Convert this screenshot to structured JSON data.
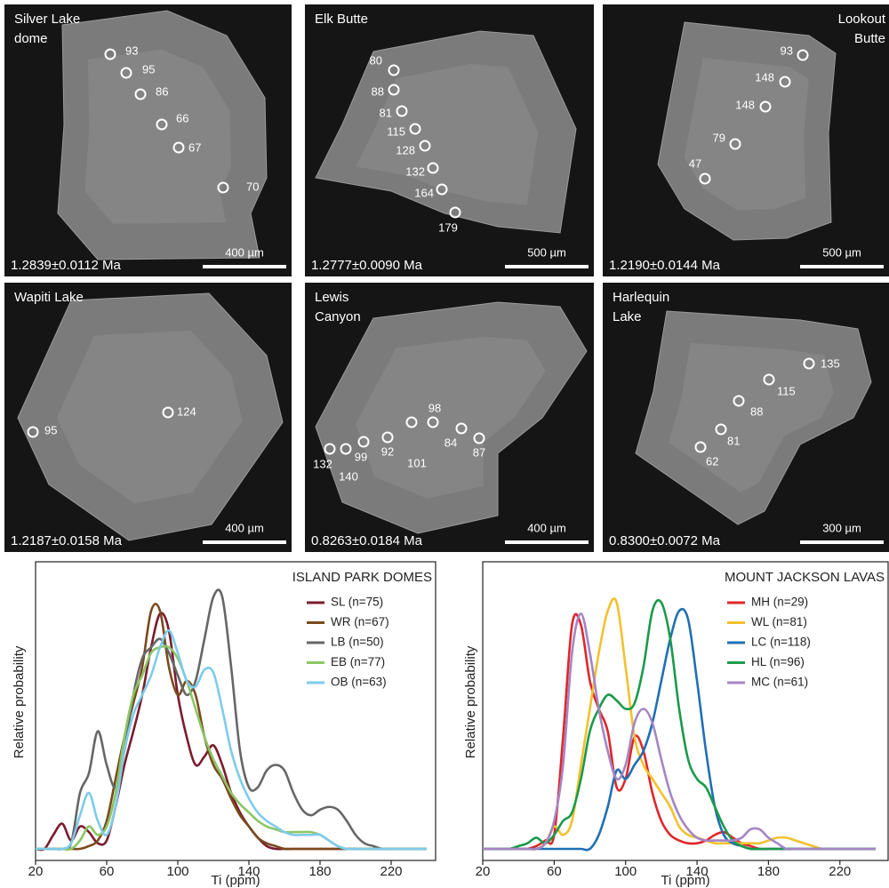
{
  "panels": [
    {
      "title": [
        "Silver Lake",
        "dome"
      ],
      "spots": [
        "93",
        "95",
        "86",
        "66",
        "67",
        "70"
      ],
      "age": "1.2839±0.0112 Ma",
      "scale": "400 µm"
    },
    {
      "title": [
        "Elk Butte"
      ],
      "spots": [
        "80",
        "88",
        "81",
        "115",
        "128",
        "132",
        "164",
        "179"
      ],
      "age": "1.2777±0.0090 Ma",
      "scale": "500 µm"
    },
    {
      "title": [
        "Lookout",
        "Butte"
      ],
      "spots": [
        "93",
        "148",
        "148",
        "79",
        "47"
      ],
      "age": "1.2190±0.0144 Ma",
      "scale": "500 µm"
    },
    {
      "title": [
        "Wapiti Lake"
      ],
      "spots": [
        "95",
        "124"
      ],
      "age": "1.2187±0.0158 Ma",
      "scale": "400 µm"
    },
    {
      "title": [
        "Lewis",
        "Canyon"
      ],
      "spots": [
        "132",
        "140",
        "99",
        "92",
        "101",
        "98",
        "84",
        "87"
      ],
      "age": "0.8263±0.0184 Ma",
      "scale": "400 µm"
    },
    {
      "title": [
        "Harlequin",
        "Lake"
      ],
      "spots": [
        "135",
        "115",
        "88",
        "81",
        "62"
      ],
      "age": "0.8300±0.0072 Ma",
      "scale": "300 µm"
    }
  ],
  "chart_data": [
    {
      "type": "line",
      "title": "ISLAND PARK DOMES",
      "x_label": "Ti (ppm)",
      "y_label": "Relative probability",
      "xlim": [
        20,
        245
      ],
      "ylim": [
        0,
        1
      ],
      "xticks": [
        20,
        60,
        100,
        140,
        180,
        220
      ],
      "x": [
        20,
        25,
        30,
        35,
        40,
        45,
        50,
        55,
        60,
        65,
        70,
        75,
        80,
        85,
        90,
        95,
        100,
        105,
        110,
        115,
        120,
        125,
        130,
        135,
        140,
        145,
        150,
        155,
        160,
        165,
        170,
        175,
        180,
        185,
        190,
        195,
        200,
        205,
        210,
        215,
        220,
        225,
        230,
        235,
        240
      ],
      "series": [
        {
          "name": "SL (n=75)",
          "color": "#7b1c2e",
          "values": [
            0,
            0,
            0.05,
            0.09,
            0.03,
            0.08,
            0.06,
            0.02,
            0.03,
            0.15,
            0.3,
            0.42,
            0.55,
            0.72,
            0.84,
            0.78,
            0.55,
            0.4,
            0.3,
            0.33,
            0.37,
            0.3,
            0.2,
            0.13,
            0.08,
            0.04,
            0.01,
            0,
            0,
            0,
            0,
            0,
            0,
            0,
            0,
            0,
            0,
            0,
            0,
            0,
            0,
            0,
            0,
            0,
            0
          ]
        },
        {
          "name": "WR (n=67)",
          "color": "#7a4a1e",
          "values": [
            0,
            0,
            0,
            0,
            0,
            0,
            0.01,
            0.03,
            0.1,
            0.25,
            0.4,
            0.52,
            0.65,
            0.85,
            0.85,
            0.65,
            0.55,
            0.6,
            0.55,
            0.4,
            0.3,
            0.25,
            0.18,
            0.12,
            0.08,
            0.04,
            0.02,
            0.01,
            0,
            0,
            0,
            0,
            0,
            0,
            0,
            0,
            0,
            0,
            0,
            0,
            0,
            0,
            0,
            0,
            0
          ]
        },
        {
          "name": "LB (n=50)",
          "color": "#666666",
          "values": [
            0,
            0,
            0,
            0,
            0.02,
            0.2,
            0.27,
            0.42,
            0.3,
            0.22,
            0.35,
            0.55,
            0.68,
            0.72,
            0.75,
            0.7,
            0.62,
            0.55,
            0.6,
            0.75,
            0.9,
            0.9,
            0.65,
            0.35,
            0.22,
            0.22,
            0.28,
            0.3,
            0.28,
            0.2,
            0.14,
            0.12,
            0.14,
            0.15,
            0.14,
            0.1,
            0.05,
            0.02,
            0.01,
            0,
            0,
            0,
            0,
            0,
            0
          ]
        },
        {
          "name": "EB (n=77)",
          "color": "#8cc665",
          "values": [
            0,
            0,
            0,
            0,
            0,
            0.03,
            0.08,
            0.05,
            0.08,
            0.2,
            0.4,
            0.55,
            0.62,
            0.7,
            0.72,
            0.72,
            0.68,
            0.6,
            0.5,
            0.4,
            0.32,
            0.26,
            0.2,
            0.16,
            0.13,
            0.1,
            0.08,
            0.07,
            0.06,
            0.06,
            0.06,
            0.06,
            0.05,
            0.03,
            0.01,
            0,
            0,
            0,
            0,
            0,
            0,
            0,
            0,
            0,
            0
          ]
        },
        {
          "name": "OB (n=63)",
          "color": "#7dcbeb",
          "values": [
            0,
            0,
            0,
            0,
            0.02,
            0.12,
            0.2,
            0.1,
            0.05,
            0.15,
            0.35,
            0.48,
            0.55,
            0.62,
            0.72,
            0.78,
            0.7,
            0.6,
            0.58,
            0.64,
            0.63,
            0.5,
            0.35,
            0.25,
            0.18,
            0.13,
            0.1,
            0.08,
            0.06,
            0.05,
            0.05,
            0.05,
            0.05,
            0.03,
            0.01,
            0,
            0,
            0,
            0,
            0,
            0,
            0,
            0,
            0,
            0
          ]
        }
      ]
    },
    {
      "type": "line",
      "title": "MOUNT JACKSON LAVAS",
      "x_label": "Ti (ppm)",
      "y_label": "Relative probability",
      "xlim": [
        20,
        247
      ],
      "ylim": [
        0,
        1
      ],
      "xticks": [
        20,
        60,
        100,
        140,
        180,
        220
      ],
      "x": [
        20,
        25,
        30,
        35,
        40,
        45,
        50,
        55,
        60,
        65,
        70,
        75,
        80,
        85,
        90,
        95,
        100,
        105,
        110,
        115,
        120,
        125,
        130,
        135,
        140,
        145,
        150,
        155,
        160,
        165,
        170,
        175,
        180,
        185,
        190,
        195,
        200,
        205,
        210,
        215,
        220,
        225,
        230,
        235,
        240
      ],
      "series": [
        {
          "name": "MH (n=29)",
          "color": "#e0262a",
          "values": [
            0,
            0,
            0,
            0,
            0,
            0,
            0.01,
            0.03,
            0.05,
            0.4,
            0.8,
            0.8,
            0.6,
            0.5,
            0.42,
            0.22,
            0.25,
            0.4,
            0.35,
            0.2,
            0.1,
            0.05,
            0.03,
            0.02,
            0.02,
            0.03,
            0.05,
            0.06,
            0.04,
            0.02,
            0.01,
            0,
            0,
            0,
            0,
            0,
            0,
            0,
            0,
            0,
            0,
            0,
            0,
            0,
            0
          ]
        },
        {
          "name": "WL (n=81)",
          "color": "#f2c12e",
          "values": [
            0,
            0,
            0,
            0,
            0,
            0,
            0,
            0.02,
            0.08,
            0.05,
            0.1,
            0.3,
            0.5,
            0.7,
            0.85,
            0.88,
            0.65,
            0.4,
            0.3,
            0.25,
            0.2,
            0.15,
            0.08,
            0.05,
            0.04,
            0.03,
            0.02,
            0.02,
            0.02,
            0.02,
            0.02,
            0.02,
            0.03,
            0.04,
            0.04,
            0.03,
            0.02,
            0.01,
            0,
            0,
            0,
            0,
            0,
            0,
            0
          ]
        },
        {
          "name": "LC (n=118)",
          "color": "#1f6fb4",
          "values": [
            0,
            0,
            0,
            0,
            0,
            0,
            0,
            0,
            0,
            0,
            0,
            0,
            0,
            0.05,
            0.15,
            0.28,
            0.25,
            0.3,
            0.35,
            0.45,
            0.6,
            0.75,
            0.85,
            0.82,
            0.6,
            0.35,
            0.15,
            0.05,
            0.02,
            0.01,
            0,
            0,
            0,
            0,
            0,
            0,
            0,
            0,
            0,
            0,
            0,
            0,
            0,
            0,
            0
          ]
        },
        {
          "name": "HL (n=96)",
          "color": "#1a9a4a",
          "values": [
            0,
            0,
            0,
            0,
            0.01,
            0.02,
            0.04,
            0.02,
            0.05,
            0.1,
            0.13,
            0.25,
            0.42,
            0.5,
            0.55,
            0.53,
            0.5,
            0.52,
            0.65,
            0.85,
            0.88,
            0.75,
            0.5,
            0.32,
            0.25,
            0.22,
            0.15,
            0.08,
            0.03,
            0.01,
            0,
            0,
            0,
            0,
            0,
            0,
            0,
            0,
            0,
            0,
            0,
            0,
            0,
            0,
            0
          ]
        },
        {
          "name": "MC (n=61)",
          "color": "#a585c4",
          "values": [
            0,
            0,
            0,
            0,
            0,
            0,
            0,
            0.02,
            0.1,
            0.3,
            0.7,
            0.84,
            0.7,
            0.5,
            0.35,
            0.25,
            0.3,
            0.45,
            0.5,
            0.45,
            0.32,
            0.2,
            0.12,
            0.07,
            0.04,
            0.03,
            0.03,
            0.03,
            0.03,
            0.04,
            0.07,
            0.07,
            0.04,
            0.02,
            0,
            0,
            0,
            0,
            0,
            0,
            0,
            0,
            0,
            0,
            0
          ]
        }
      ]
    }
  ]
}
